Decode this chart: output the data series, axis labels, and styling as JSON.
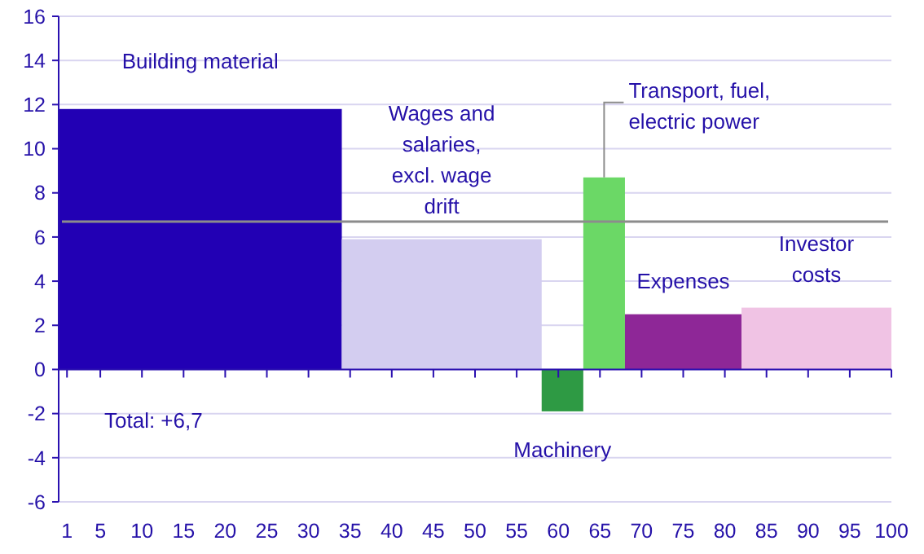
{
  "chart_data": {
    "type": "histogram",
    "bins": [
      0,
      34,
      58,
      63,
      68,
      82,
      100
    ],
    "values": [
      11.8,
      5.9,
      -1.9,
      8.7,
      2.5,
      2.8
    ],
    "colors": [
      "#2200b4",
      "#d3cdf0",
      "#2e9a44",
      "#6bd866",
      "#8e2797",
      "#f0c3e4"
    ],
    "xlim": [
      0,
      100
    ],
    "xticks": [
      1,
      5,
      10,
      15,
      20,
      25,
      30,
      35,
      40,
      45,
      50,
      55,
      60,
      65,
      70,
      75,
      80,
      85,
      90,
      95,
      100
    ],
    "ylim": [
      -6,
      16
    ],
    "yticks": [
      -6,
      -4,
      -2,
      0,
      2,
      4,
      6,
      8,
      10,
      12,
      14,
      16
    ],
    "grid": "y",
    "ref_lines": [
      {
        "axis": "y",
        "value": 6.7,
        "color": "#8c8c8c"
      },
      {
        "axis": "y",
        "value": 0,
        "color": "#2a10b0"
      }
    ],
    "annotations": [
      {
        "text": "Building material",
        "x": 17,
        "y": 11.8
      },
      {
        "text": "Wages and\nsalaries,\nexcl. wage\ndrift",
        "x": 46,
        "y": 5.9
      },
      {
        "text": "Transport, fuel,\nelectric power",
        "x": 65.5,
        "y": 8.7
      },
      {
        "text": "Machinery",
        "x": 60.5,
        "y": -1.9
      },
      {
        "text": "Expenses",
        "x": 75,
        "y": 2.5
      },
      {
        "text": "Investor\ncosts",
        "x": 91,
        "y": 2.8
      },
      "Total: +6,7"
    ]
  }
}
